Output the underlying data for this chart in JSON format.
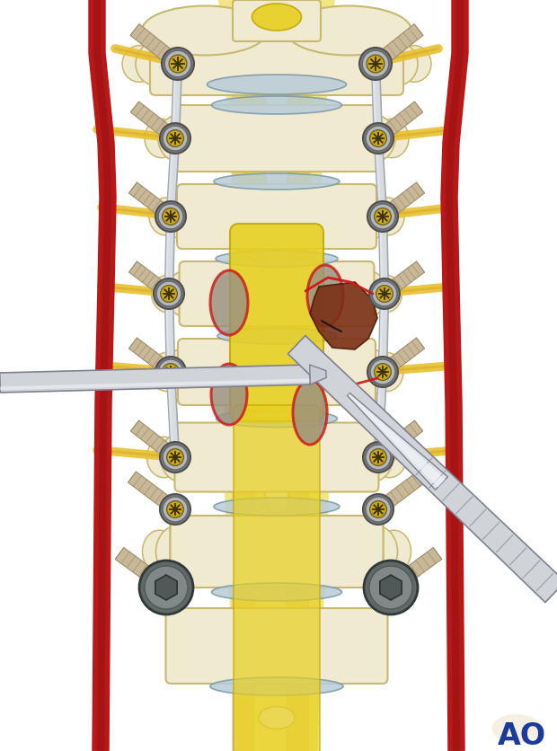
{
  "bg_color": "#ffffff",
  "bone_color": "#f0ead0",
  "bone_edge": "#c8b870",
  "bone_edge2": "#a09050",
  "disc_yellow": "#e8d020",
  "disc_edge": "#c0a800",
  "nerve_yellow": "#e8c030",
  "red_vessel": "#b81818",
  "red_vessel_dark": "#8a1010",
  "screw_outer": "#909090",
  "screw_mid": "#b0b8c0",
  "screw_inner": "#c8a820",
  "screw_edge": "#505050",
  "rod_light": "#d8dce0",
  "rod_dark": "#a0a8b0",
  "thread_color": "#c8b898",
  "thread_edge": "#a09070",
  "cut_red": "#cc1818",
  "brown_tissue": "#7a3015",
  "brown_dark": "#4a1a08",
  "grey_cut": "#9a9080",
  "blue_disc": "#b8ccd8",
  "blue_disc_edge": "#7898a8",
  "pll_strip_color": "#d09090",
  "pll_strip_alpha": 0.4,
  "instrument_silver": "#d0d4d8",
  "instrument_dark": "#808090",
  "instrument_shine": "#e8ecf0",
  "ao_color": "#1a3a9e",
  "figsize": [
    6.2,
    8.37
  ]
}
